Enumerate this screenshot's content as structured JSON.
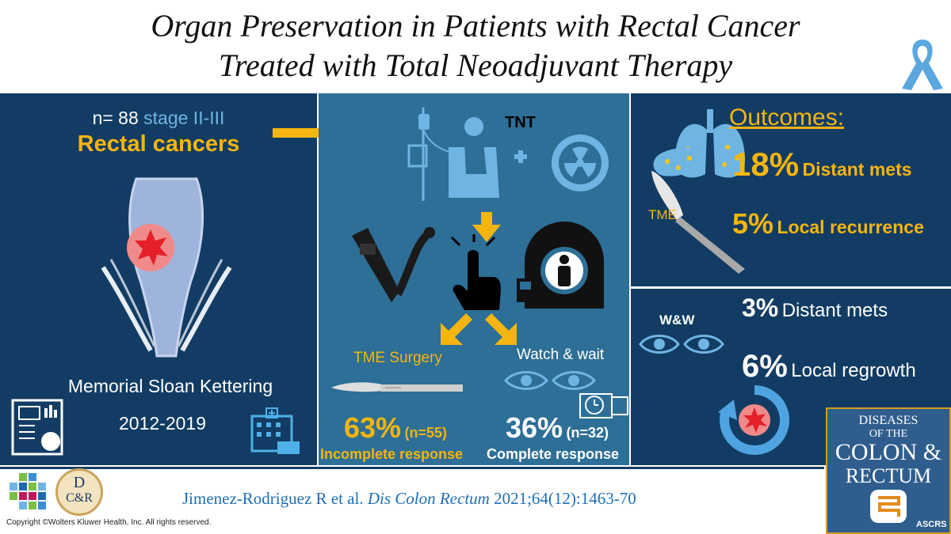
{
  "title": {
    "line1": "Organ Preservation in Patients with Rectal Cancer",
    "line2": "Treated with Total Neoadjuvant Therapy"
  },
  "left": {
    "n_label": "n= 88",
    "stage": "stage II-III",
    "cancer": "Rectal cancers",
    "institution": "Memorial Sloan Kettering",
    "years": "2012-2019"
  },
  "middle": {
    "tnt": "TNT",
    "tme_surgery": "TME Surgery",
    "watch_wait": "Watch & wait",
    "tme_pct": "63%",
    "tme_n": "(n=55)",
    "tme_response": "Incomplete response",
    "ww_pct": "36%",
    "ww_n": "(n=32)",
    "ww_response": "Complete response"
  },
  "right_top": {
    "heading": "Outcomes:",
    "tme_label": "TME",
    "distant_pct": "18%",
    "distant_label": "Distant mets",
    "local_pct": "5%",
    "local_label": "Local recurrence"
  },
  "right_bottom": {
    "ww_label": "W&W",
    "distant_pct": "3%",
    "distant_label": "Distant mets",
    "regrowth_pct": "6%",
    "regrowth_label": "Local regrowth"
  },
  "journal": {
    "line1": "DISEASES",
    "line2": "OF THE",
    "line3": "COLON &",
    "line4": "RECTUM",
    "society": "ASCRS"
  },
  "logo_dcr": {
    "letter1": "D",
    "letter2": "C&R"
  },
  "citation": {
    "authors": "Jimenez-Rodriguez R et al.",
    "journal": "Dis Colon Rectum",
    "ref": "2021;64(12):1463-70"
  },
  "copyright": "Copyright ©Wolters Kluwer Health, Inc. All rights reserved.",
  "colors": {
    "navy": "#123c63",
    "mid_blue": "#2d6f96",
    "accent_yellow": "#f5b50f",
    "light_blue": "#6fb5e3"
  }
}
